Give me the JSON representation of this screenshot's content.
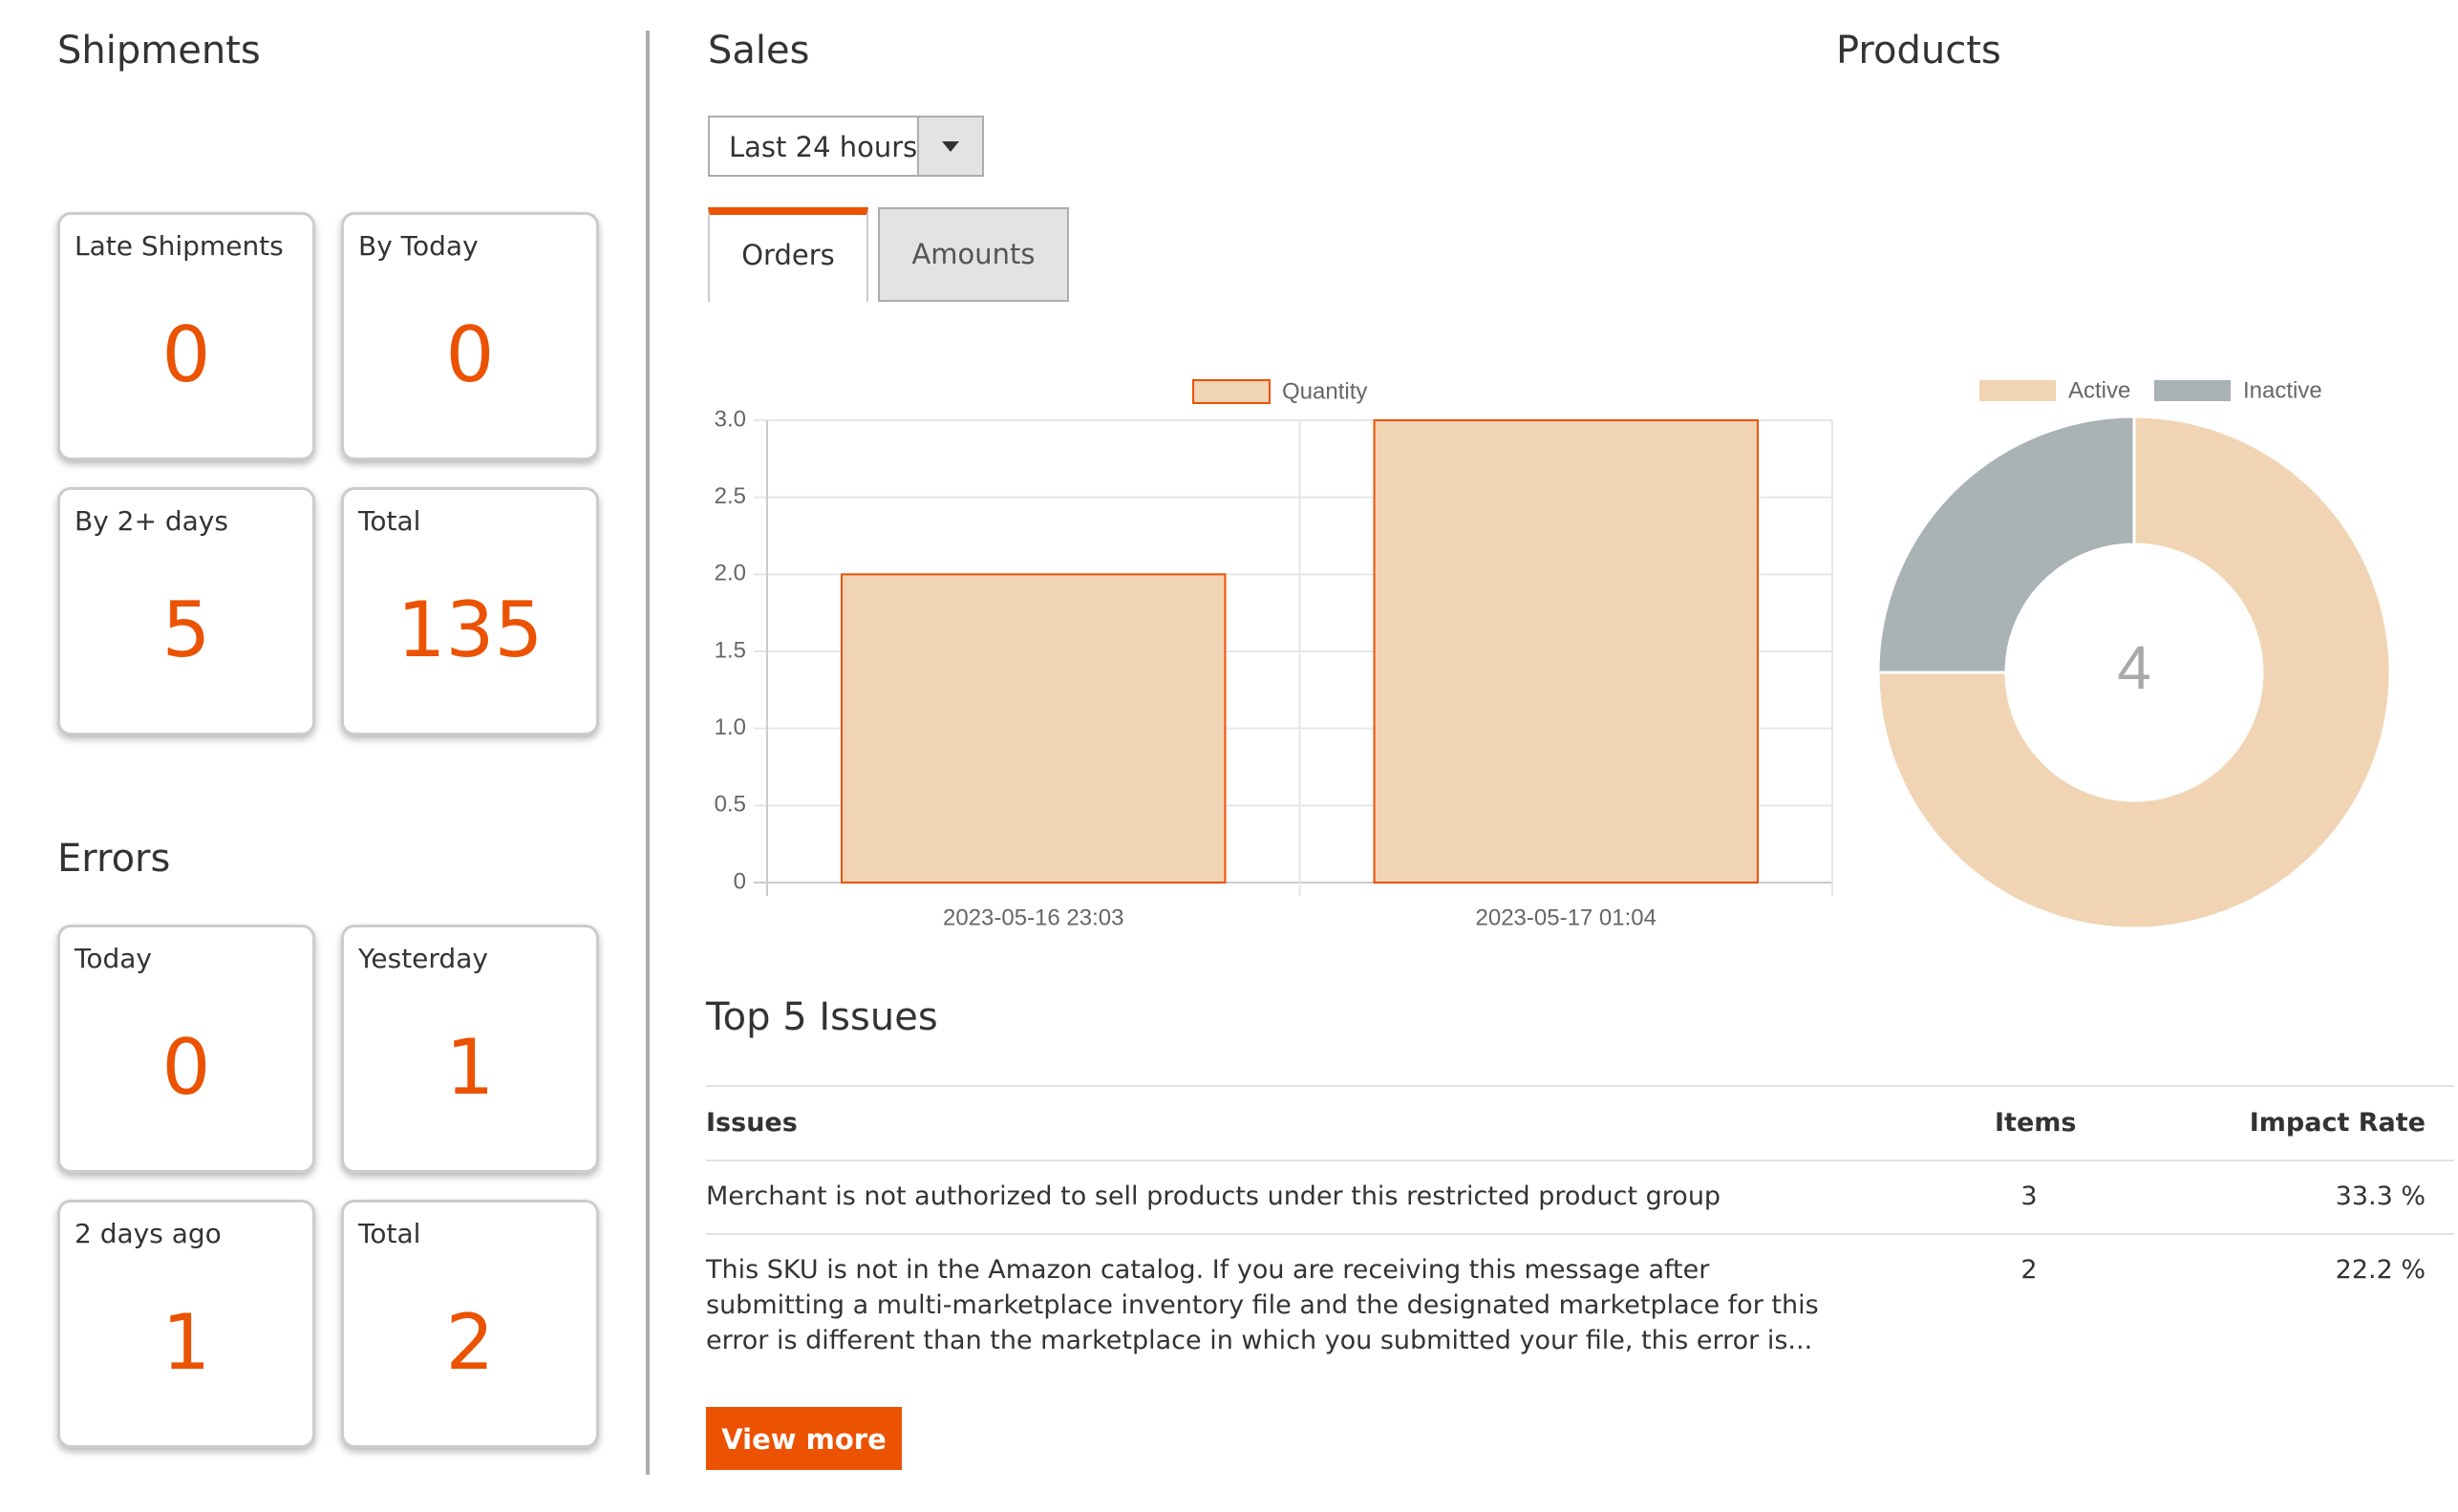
{
  "shipments": {
    "title": "Shipments",
    "tiles": [
      {
        "label": "Late Shipments",
        "value": "0"
      },
      {
        "label": "By Today",
        "value": "0"
      },
      {
        "label": "By 2+ days",
        "value": "5"
      },
      {
        "label": "Total",
        "value": "135"
      }
    ]
  },
  "errors": {
    "title": "Errors",
    "tiles": [
      {
        "label": "Today",
        "value": "0"
      },
      {
        "label": "Yesterday",
        "value": "1"
      },
      {
        "label": "2 days ago",
        "value": "1"
      },
      {
        "label": "Total",
        "value": "2"
      }
    ]
  },
  "sales": {
    "title": "Sales",
    "period_select": {
      "value": "Last 24 hours"
    },
    "tabs": [
      {
        "label": "Orders",
        "active": true
      },
      {
        "label": "Amounts",
        "active": false
      }
    ]
  },
  "products": {
    "title": "Products"
  },
  "colors": {
    "accent": "#eb5202",
    "bar_fill": "#f1d4b3",
    "active": "#f1d4b3",
    "inactive": "#a9b3b5"
  },
  "chart_data": [
    {
      "type": "bar",
      "categories": [
        "2023-05-16 23:03",
        "2023-05-17 01:04"
      ],
      "series": [
        {
          "name": "Quantity",
          "values": [
            2,
            3
          ]
        }
      ],
      "ylim": [
        0,
        3
      ],
      "yticks": [
        "0",
        "0.5",
        "1.0",
        "1.5",
        "2.0",
        "2.5",
        "3.0"
      ],
      "grid": true,
      "legend": "top"
    },
    {
      "type": "pie",
      "labels": [
        "Active",
        "Inactive"
      ],
      "values": [
        3,
        1
      ],
      "center_label": "4",
      "legend": "top"
    }
  ],
  "issues": {
    "title": "Top 5 Issues",
    "columns": [
      "Issues",
      "Items",
      "Impact Rate"
    ],
    "rows": [
      {
        "issue": "Merchant is not authorized to sell products under this restricted product group",
        "items": "3",
        "rate": "33.3 %"
      },
      {
        "issue": "This SKU is not in the Amazon catalog. If you are receiving this message after submitting a multi-marketplace inventory file and the designated marketplace for this error is different than the marketplace in which you submitted your file, this error is...",
        "items": "2",
        "rate": "22.2 %"
      }
    ],
    "view_more_label": "View more"
  }
}
